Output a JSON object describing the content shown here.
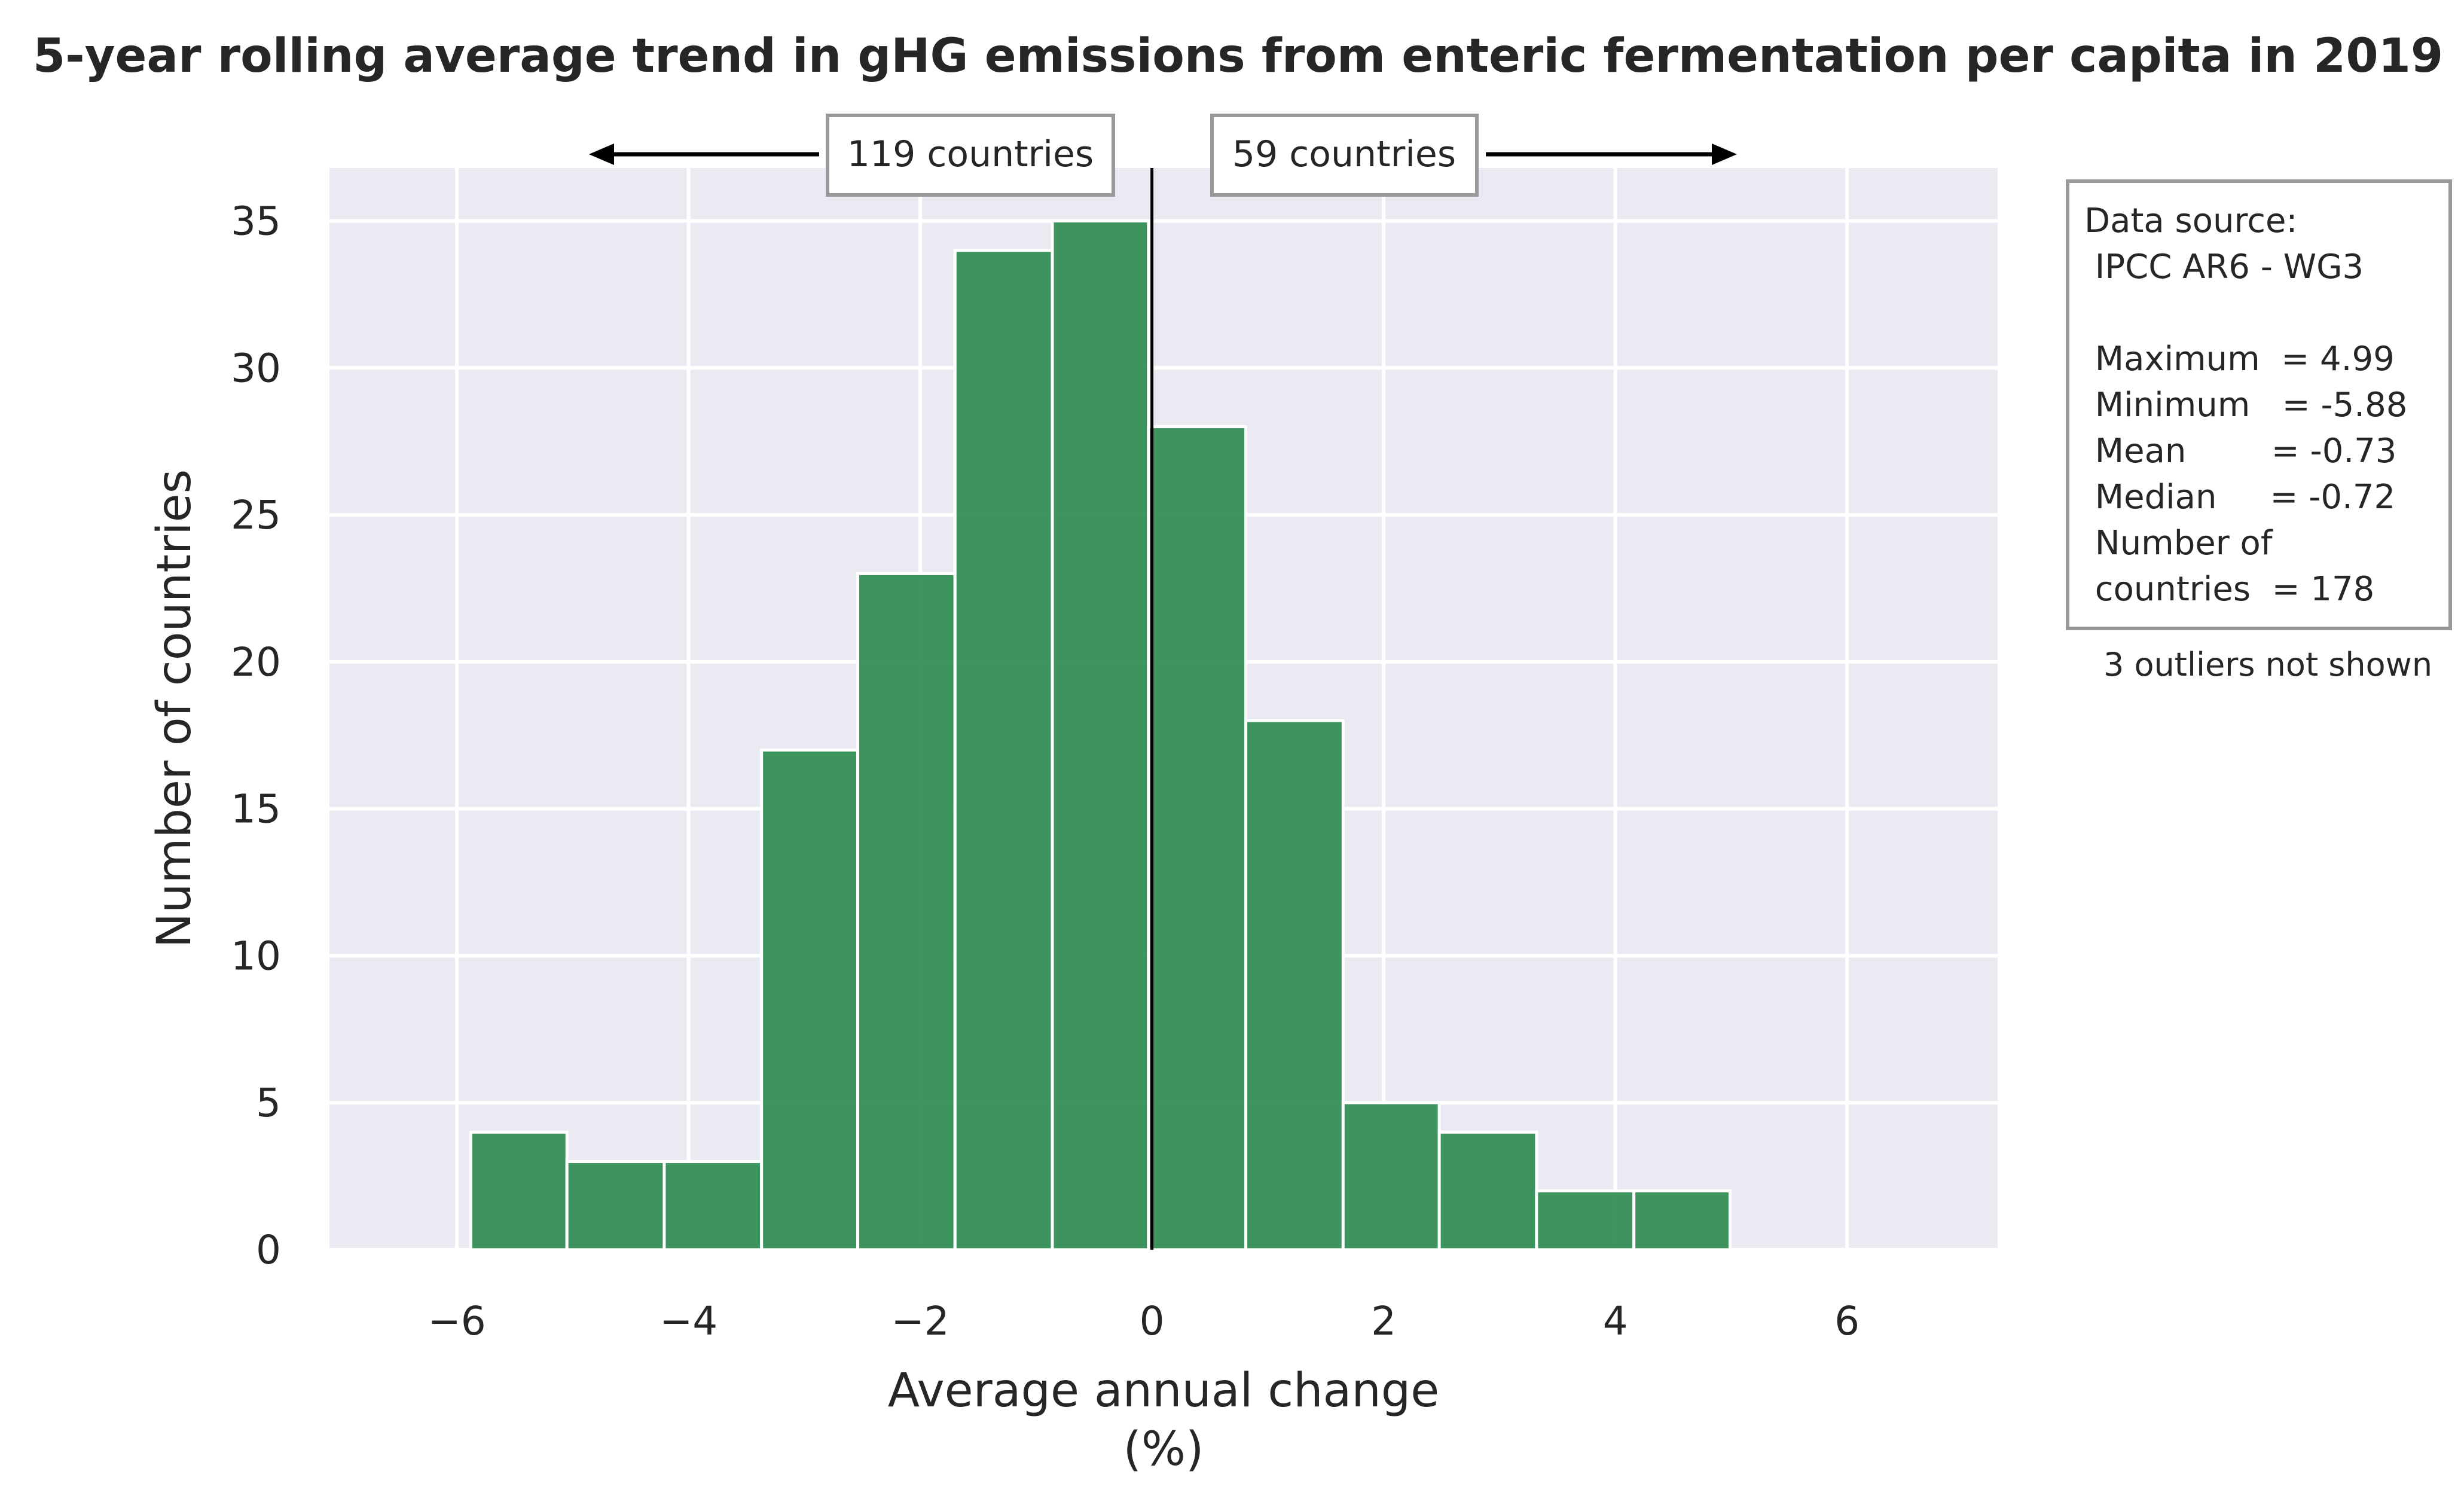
{
  "chart_data": {
    "type": "bar",
    "subtype": "histogram",
    "title": "5-year rolling average trend in gHG emissions from enteric fermentation per capita in 2019",
    "xlabel_line1": "Average annual change",
    "xlabel_line2": "(%)",
    "ylabel": "Number of countries",
    "xlim": [
      -7.1,
      7.3
    ],
    "ylim": [
      0,
      36.8
    ],
    "xticks": [
      -6,
      -4,
      -2,
      0,
      2,
      4,
      6
    ],
    "xtick_labels": [
      "−6",
      "−4",
      "−2",
      "0",
      "2",
      "4",
      "6"
    ],
    "yticks": [
      0,
      5,
      10,
      15,
      20,
      25,
      30,
      35
    ],
    "ytick_labels": [
      "0",
      "5",
      "10",
      "15",
      "20",
      "25",
      "30",
      "35"
    ],
    "grid": true,
    "bar_color": "#2e8b50",
    "plot_background": "#eaeaf2",
    "bins": [
      {
        "x0": -5.88,
        "x1": -5.05,
        "count": 4
      },
      {
        "x0": -5.05,
        "x1": -4.21,
        "count": 3
      },
      {
        "x0": -4.21,
        "x1": -3.37,
        "count": 3
      },
      {
        "x0": -3.37,
        "x1": -2.54,
        "count": 17
      },
      {
        "x0": -2.54,
        "x1": -1.7,
        "count": 23
      },
      {
        "x0": -1.7,
        "x1": -0.86,
        "count": 34
      },
      {
        "x0": -0.86,
        "x1": -0.03,
        "count": 35
      },
      {
        "x0": -0.03,
        "x1": 0.81,
        "count": 28
      },
      {
        "x0": 0.81,
        "x1": 1.65,
        "count": 18
      },
      {
        "x0": 1.65,
        "x1": 2.48,
        "count": 5
      },
      {
        "x0": 2.48,
        "x1": 3.32,
        "count": 4
      },
      {
        "x0": 3.32,
        "x1": 4.16,
        "count": 2
      },
      {
        "x0": 4.16,
        "x1": 4.99,
        "count": 2
      }
    ],
    "reference_line_x": 0,
    "left_annotation": "119 countries",
    "right_annotation": "59 countries",
    "stats_box_lines": [
      "Data source:",
      " IPCC AR6 - WG3",
      "",
      " Maximum  = 4.99",
      " Minimum   = -5.88",
      " Mean        = -0.73",
      " Median     = -0.72",
      " Number of",
      " countries  = 178"
    ],
    "note": "3 outliers not shown"
  }
}
